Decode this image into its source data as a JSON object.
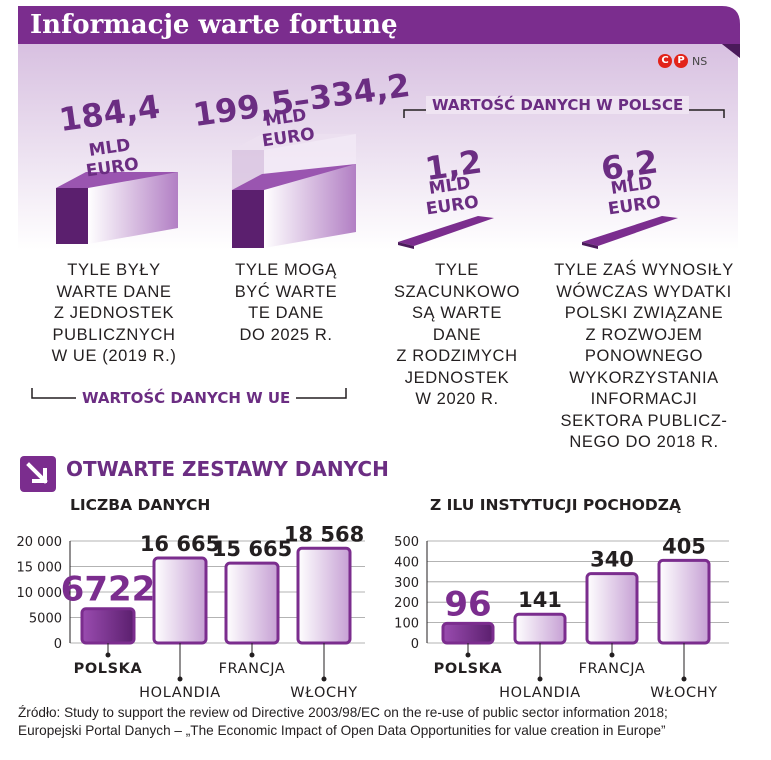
{
  "header": {
    "title": "Informacje warte fortunę"
  },
  "logo": {
    "c": "C",
    "p": "P",
    "ns": "NS"
  },
  "top": {
    "eu_bracket_label": "WARTOŚĆ DANYCH W UE",
    "pl_bracket_label": "WARTOŚĆ DANYCH W POLSCE",
    "items": [
      {
        "value": "184,4",
        "unit1": "MLD",
        "unit2": "EURO",
        "desc": [
          "TYLE BYŁY",
          "WARTE DANE",
          "Z JEDNOSTEK",
          "PUBLICZNYCH",
          "W UE (2019 R.)"
        ]
      },
      {
        "value": "199,5–334,2",
        "unit1": "MLD",
        "unit2": "EURO",
        "desc": [
          "TYLE MOGĄ",
          "BYĆ WARTE",
          "TE DANE",
          "DO 2025 R."
        ]
      },
      {
        "value": "1,2",
        "unit1": "MLD",
        "unit2": "EURO",
        "desc": [
          "TYLE",
          "SZACUNKOWO",
          "SĄ WARTE",
          "DANE",
          "Z RODZIMYCH",
          "JEDNOSTEK",
          "W 2020 R."
        ]
      },
      {
        "value": "6,2",
        "unit1": "MLD",
        "unit2": "EURO",
        "desc": [
          "TYLE ZAŚ WYNOSIŁY",
          "WÓWCZAS WYDATKI",
          "POLSKI ZWIĄZANE",
          "Z ROZWOJEM",
          "PONOWNEGO",
          "WYKORZYSTANIA",
          "INFORMACJI",
          "SEKTORA PUBLICZ-",
          "NEGO DO 2018 R."
        ]
      }
    ]
  },
  "section": {
    "title": "OTWARTE ZESTAWY DANYCH"
  },
  "colors": {
    "purple": "#7b2d8e",
    "dark_purple": "#5b1f6e",
    "light_purple": "#d9c2e3",
    "band": "#efe4f2"
  },
  "chart_data": [
    {
      "type": "bar",
      "title": "LICZBA DANYCH",
      "categories": [
        "POLSKA",
        "HOLANDIA",
        "FRANCJA",
        "WŁOCHY"
      ],
      "values": [
        6722,
        16665,
        15665,
        18568
      ],
      "value_labels": [
        "6722",
        "16 665",
        "15 665",
        "18 568"
      ],
      "yticks": [
        0,
        5000,
        10000,
        15000,
        20000
      ],
      "ytick_labels": [
        "0",
        "5000",
        "10 000",
        "15 000",
        "20 000"
      ],
      "ylim": [
        0,
        20000
      ],
      "highlight": "POLSKA"
    },
    {
      "type": "bar",
      "title": "Z ILU INSTYTUCJI POCHODZĄ",
      "categories": [
        "POLSKA",
        "HOLANDIA",
        "FRANCJA",
        "WŁOCHY"
      ],
      "values": [
        96,
        141,
        340,
        405
      ],
      "value_labels": [
        "96",
        "141",
        "340",
        "405"
      ],
      "yticks": [
        0,
        100,
        200,
        300,
        400,
        500
      ],
      "ytick_labels": [
        "0",
        "100",
        "200",
        "300",
        "400",
        "500"
      ],
      "ylim": [
        0,
        500
      ],
      "highlight": "POLSKA"
    }
  ],
  "source": {
    "line1": "Źródło: Study to support the review od Directive 2003/98/EC on the re-use of public sector information 2018;",
    "line2": "Europejski Portal Danych – „The Economic Impact of Open Data Opportunities for value creation in Europe”"
  }
}
